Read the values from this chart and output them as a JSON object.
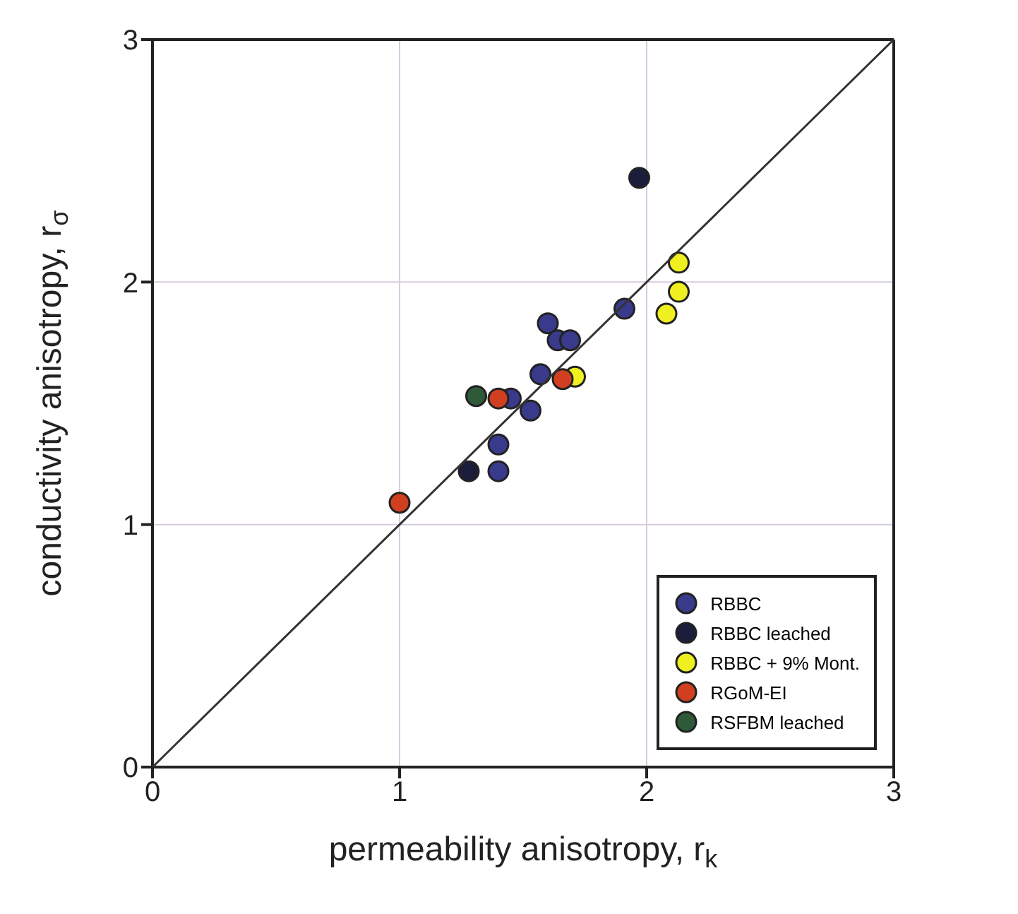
{
  "chart_data": {
    "type": "scatter",
    "xlabel": "permeability anisotropy, r$_{k}$",
    "ylabel": "conductivity anisotropy, r$_{σ}$",
    "xlim": [
      0,
      3
    ],
    "ylim": [
      0,
      3
    ],
    "xticks": [
      0,
      1,
      2,
      3
    ],
    "yticks": [
      0,
      1,
      2,
      3
    ],
    "grid": true,
    "legend": "bottom right",
    "marker": "circle",
    "series": [
      {
        "name": "RBBC",
        "color": "#3a3a8c",
        "x": [
          1.91,
          1.6,
          1.64,
          1.69,
          1.57,
          1.45,
          1.53,
          1.4,
          1.4
        ],
        "values": [
          1.89,
          1.83,
          1.76,
          1.76,
          1.62,
          1.52,
          1.47,
          1.33,
          1.22
        ]
      },
      {
        "name": "RBBC leached",
        "color": "#1c1c3c",
        "x": [
          1.97,
          1.28
        ],
        "values": [
          2.43,
          1.22
        ]
      },
      {
        "name": "RBBC + 9% Mont.",
        "color": "#f0f020",
        "x": [
          2.13,
          2.13,
          2.08,
          1.71
        ],
        "values": [
          2.08,
          1.96,
          1.87,
          1.61
        ]
      },
      {
        "name": "RGoM-EI",
        "color": "#d04020",
        "x": [
          1.0,
          1.4,
          1.66
        ],
        "values": [
          1.09,
          1.52,
          1.6
        ]
      },
      {
        "name": "RSFBM leached",
        "color": "#2f5a3a",
        "x": [
          1.31
        ],
        "values": [
          1.53
        ]
      },
      {
        "type": "line",
        "color": "#333333",
        "line_style": "solid",
        "marker": "none",
        "x": [
          0,
          3
        ],
        "values": [
          0,
          3
        ]
      }
    ]
  }
}
